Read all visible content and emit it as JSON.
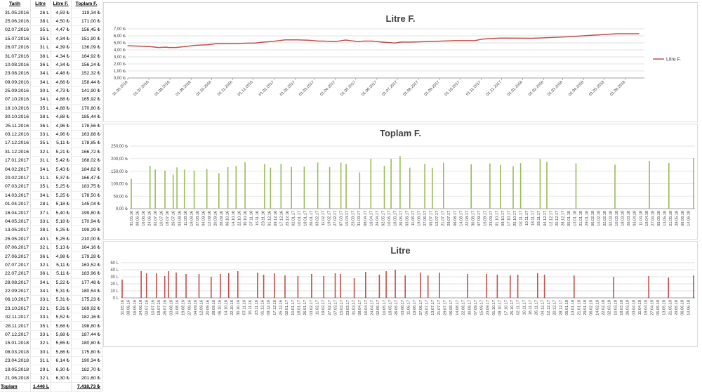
{
  "table": {
    "headers": [
      "Tarih",
      "Litre",
      "Litre F.",
      "Toplam F."
    ],
    "rows": [
      [
        "31.05.2016",
        "26 L",
        "4,59 ₺",
        "119,34 ₺"
      ],
      [
        "25.06.2016",
        "38 L",
        "4,50 ₺",
        "171,00 ₺"
      ],
      [
        "02.07.2016",
        "35 L",
        "4,47 ₺",
        "156,45 ₺"
      ],
      [
        "15.07.2016",
        "35 L",
        "4,34 ₺",
        "151,90 ₺"
      ],
      [
        "26.07.2016",
        "31 L",
        "4,39 ₺",
        "136,09 ₺"
      ],
      [
        "31.07.2016",
        "38 L",
        "4,34 ₺",
        "164,92 ₺"
      ],
      [
        "10.08.2016",
        "36 L",
        "4,34 ₺",
        "156,24 ₺"
      ],
      [
        "23.08.2016",
        "34 L",
        "4,48 ₺",
        "152,32 ₺"
      ],
      [
        "09.09.2016",
        "34 L",
        "4,66 ₺",
        "158,44 ₺"
      ],
      [
        "25.09.2016",
        "30 L",
        "4,73 ₺",
        "141,90 ₺"
      ],
      [
        "07.10.2016",
        "34 L",
        "4,88 ₺",
        "165,92 ₺"
      ],
      [
        "18.10.2016",
        "35 L",
        "4,88 ₺",
        "170,80 ₺"
      ],
      [
        "30.10.2016",
        "38 L",
        "4,88 ₺",
        "185,44 ₺"
      ],
      [
        "25.11.2016",
        "36 L",
        "4,96 ₺",
        "178,56 ₺"
      ],
      [
        "03.12.2016",
        "33 L",
        "4,96 ₺",
        "163,68 ₺"
      ],
      [
        "17.12.2016",
        "35 L",
        "5,11 ₺",
        "178,85 ₺"
      ],
      [
        "31.12.2016",
        "32 L",
        "5,21 ₺",
        "166,72 ₺"
      ],
      [
        "17.01.2017",
        "31 L",
        "5,42 ₺",
        "168,02 ₺"
      ],
      [
        "04.02.2017",
        "34 L",
        "5,43 ₺",
        "184,62 ₺"
      ],
      [
        "20.02.2017",
        "31 L",
        "5,37 ₺",
        "166,47 ₺"
      ],
      [
        "07.03.2017",
        "35 L",
        "5,25 ₺",
        "183,75 ₺"
      ],
      [
        "14.03.2017",
        "34 L",
        "5,25 ₺",
        "178,50 ₺"
      ],
      [
        "01.04.2017",
        "28 L",
        "5,18 ₺",
        "145,04 ₺"
      ],
      [
        "16.04.2017",
        "37 L",
        "5,40 ₺",
        "199,80 ₺"
      ],
      [
        "04.05.2017",
        "33 L",
        "5,18 ₺",
        "170,94 ₺"
      ],
      [
        "13.05.2017",
        "38 L",
        "5,25 ₺",
        "199,29 ₺"
      ],
      [
        "25.05.2017",
        "40 L",
        "5,25 ₺",
        "210,00 ₺"
      ],
      [
        "07.06.2017",
        "32 L",
        "5,13 ₺",
        "164,16 ₺"
      ],
      [
        "27.06.2017",
        "36 L",
        "4,98 ₺",
        "179,28 ₺"
      ],
      [
        "07.07.2017",
        "32 L",
        "5,11 ₺",
        "163,52 ₺"
      ],
      [
        "22.07.2017",
        "36 L",
        "5,11 ₺",
        "183,96 ₺"
      ],
      [
        "28.08.2017",
        "34 L",
        "5,22 ₺",
        "177,48 ₺"
      ],
      [
        "22.09.2017",
        "34 L",
        "5,31 ₺",
        "180,54 ₺"
      ],
      [
        "06.10.2017",
        "33 L",
        "5,31 ₺",
        "175,23 ₺"
      ],
      [
        "23.10.2017",
        "32 L",
        "5,31 ₺",
        "169,92 ₺"
      ],
      [
        "02.11.2017",
        "33 L",
        "5,52 ₺",
        "182,16 ₺"
      ],
      [
        "28.11.2017",
        "35 L",
        "5,68 ₺",
        "198,80 ₺"
      ],
      [
        "07.12.2017",
        "33 L",
        "5,68 ₺",
        "187,44 ₺"
      ],
      [
        "15.01.2018",
        "32 L",
        "5,65 ₺",
        "180,80 ₺"
      ],
      [
        "08.03.2018",
        "30 L",
        "5,86 ₺",
        "175,80 ₺"
      ],
      [
        "23.04.2018",
        "31 L",
        "6,14 ₺",
        "190,34 ₺"
      ],
      [
        "19.05.2018",
        "29 L",
        "6,30 ₺",
        "182,70 ₺"
      ],
      [
        "21.06.2018",
        "32 L",
        "6,30 ₺",
        "201,60 ₺"
      ]
    ],
    "total": {
      "label": "Toplam",
      "litre": "1.446 L",
      "total": "7.418,73 ₺"
    }
  },
  "colors": {
    "line": "#c0504d",
    "green": "#9bbb59",
    "red": "#c0504d",
    "grid": "#d9d9d9",
    "axis": "#8c8c8c"
  },
  "chart_data": [
    {
      "type": "line",
      "title": "Litre F.",
      "legend": "Litre F.",
      "legend_position": "right",
      "x_ticks": [
        "31.05.2016",
        "01.07.2016",
        "01.08.2016",
        "01.09.2016",
        "01.10.2016",
        "01.11.2016",
        "01.12.2016",
        "01.01.2017",
        "01.02.2017",
        "01.03.2017",
        "01.04.2017",
        "01.05.2017",
        "01.06.2017",
        "01.07.2017",
        "01.08.2017",
        "01.09.2017",
        "01.10.2017",
        "01.11.2017",
        "01.12.2017",
        "01.01.2018",
        "01.02.2018",
        "01.03.2018",
        "01.04.2018",
        "01.05.2018",
        "01.06.2018"
      ],
      "y_ticks": [
        "0,00 ₺",
        "1,00 ₺",
        "2,00 ₺",
        "3,00 ₺",
        "4,00 ₺",
        "5,00 ₺",
        "6,00 ₺",
        "7,00 ₺"
      ],
      "ylim": [
        0,
        7
      ],
      "grid": true,
      "x": [
        "31.05.2016",
        "25.06.2016",
        "02.07.2016",
        "15.07.2016",
        "26.07.2016",
        "31.07.2016",
        "10.08.2016",
        "23.08.2016",
        "09.09.2016",
        "25.09.2016",
        "07.10.2016",
        "18.10.2016",
        "30.10.2016",
        "25.11.2016",
        "03.12.2016",
        "17.12.2016",
        "31.12.2016",
        "17.01.2017",
        "04.02.2017",
        "20.02.2017",
        "07.03.2017",
        "14.03.2017",
        "01.04.2017",
        "16.04.2017",
        "04.05.2017",
        "13.05.2017",
        "25.05.2017",
        "07.06.2017",
        "27.06.2017",
        "07.07.2017",
        "22.07.2017",
        "28.08.2017",
        "22.09.2017",
        "06.10.2017",
        "23.10.2017",
        "02.11.2017",
        "28.11.2017",
        "07.12.2017",
        "15.01.2018",
        "08.03.2018",
        "23.04.2018",
        "19.05.2018",
        "21.06.2018"
      ],
      "y": [
        4.59,
        4.5,
        4.47,
        4.34,
        4.39,
        4.34,
        4.34,
        4.48,
        4.66,
        4.73,
        4.88,
        4.88,
        4.88,
        4.96,
        4.96,
        5.11,
        5.21,
        5.42,
        5.43,
        5.37,
        5.25,
        5.25,
        5.18,
        5.4,
        5.18,
        5.25,
        5.25,
        5.13,
        4.98,
        5.11,
        5.11,
        5.22,
        5.31,
        5.31,
        5.31,
        5.52,
        5.68,
        5.68,
        5.65,
        5.86,
        6.14,
        6.3,
        6.3
      ]
    },
    {
      "type": "bar",
      "title": "Toplam F.",
      "y_ticks": [
        "0,00 ₺",
        "50,00 ₺",
        "100,00 ₺",
        "150,00 ₺",
        "200,00 ₺",
        "250,00 ₺"
      ],
      "ylim": [
        0,
        250
      ],
      "grid": true,
      "x": [
        "31.05.2016",
        "25.06.2016",
        "02.07.2016",
        "15.07.2016",
        "26.07.2016",
        "31.07.2016",
        "10.08.2016",
        "23.08.2016",
        "09.09.2016",
        "25.09.2016",
        "07.10.2016",
        "18.10.2016",
        "30.10.2016",
        "25.11.2016",
        "03.12.2016",
        "17.12.2016",
        "31.12.2016",
        "17.01.2017",
        "04.02.2017",
        "20.02.2017",
        "07.03.2017",
        "14.03.2017",
        "01.04.2017",
        "16.04.2017",
        "04.05.2017",
        "13.05.2017",
        "25.05.2017",
        "07.06.2017",
        "27.06.2017",
        "07.07.2017",
        "22.07.2017",
        "28.08.2017",
        "22.09.2017",
        "06.10.2017",
        "23.10.2017",
        "02.11.2017",
        "28.11.2017",
        "07.12.2017",
        "15.01.2018",
        "08.03.2018",
        "23.04.2018",
        "19.05.2018",
        "21.06.2018"
      ],
      "values": [
        119.34,
        171.0,
        156.45,
        151.9,
        136.09,
        164.92,
        156.24,
        152.32,
        158.44,
        141.9,
        165.92,
        170.8,
        185.44,
        178.56,
        163.68,
        178.85,
        166.72,
        168.02,
        184.62,
        166.47,
        183.75,
        178.5,
        145.04,
        199.8,
        170.94,
        199.29,
        210.0,
        164.16,
        179.28,
        163.52,
        183.96,
        177.48,
        180.54,
        175.23,
        169.92,
        182.16,
        198.8,
        187.44,
        180.8,
        175.8,
        190.34,
        182.7,
        201.6
      ],
      "x_ticks": [
        "31.05.16",
        "08.06.16",
        "16.06.16",
        "24.06.16",
        "02.07.16",
        "10.07.16",
        "18.07.16",
        "26.07.16",
        "03.08.16",
        "11.08.16",
        "19.08.16",
        "27.08.16",
        "04.09.16",
        "12.09.16",
        "20.09.16",
        "28.09.16",
        "06.10.16",
        "14.10.16",
        "22.10.16",
        "30.10.16",
        "07.11.16",
        "15.11.16",
        "23.11.16",
        "01.12.16",
        "09.12.16",
        "17.12.16",
        "25.12.16",
        "02.01.17",
        "10.01.17",
        "18.01.17",
        "26.01.17",
        "03.02.17",
        "11.02.17",
        "19.02.17",
        "27.02.17",
        "07.03.17",
        "15.03.17",
        "23.03.17",
        "31.03.17",
        "08.04.17",
        "16.04.17",
        "24.04.17",
        "02.05.17",
        "10.05.17",
        "18.05.17",
        "26.05.17",
        "03.06.17",
        "11.06.17",
        "19.06.17",
        "27.06.17",
        "05.07.17",
        "13.07.17",
        "21.07.17",
        "29.07.17",
        "06.08.17",
        "14.08.17",
        "22.08.17",
        "30.08.17",
        "07.09.17",
        "15.09.17",
        "23.09.17",
        "01.10.17",
        "09.10.17",
        "17.10.17",
        "25.10.17",
        "02.11.17",
        "10.11.17",
        "18.11.17",
        "26.11.17",
        "04.12.17",
        "12.12.17",
        "20.12.17",
        "28.12.17",
        "05.01.18",
        "13.01.18",
        "21.01.18",
        "29.01.18",
        "06.02.18",
        "14.02.18",
        "22.02.18",
        "02.03.18",
        "10.03.18",
        "18.03.18",
        "26.03.18",
        "03.04.18",
        "11.04.18",
        "19.04.18",
        "27.04.18",
        "05.05.18",
        "13.05.18",
        "21.05.18",
        "29.05.18",
        "06.06.18",
        "14.06.18"
      ]
    },
    {
      "type": "bar",
      "title": "Litre",
      "y_ticks": [
        "0 L",
        "10 L",
        "20 L",
        "30 L",
        "40 L",
        "50 L"
      ],
      "ylim": [
        0,
        50
      ],
      "grid": true,
      "x": [
        "31.05.2016",
        "25.06.2016",
        "02.07.2016",
        "15.07.2016",
        "26.07.2016",
        "31.07.2016",
        "10.08.2016",
        "23.08.2016",
        "09.09.2016",
        "25.09.2016",
        "07.10.2016",
        "18.10.2016",
        "30.10.2016",
        "25.11.2016",
        "03.12.2016",
        "17.12.2016",
        "31.12.2016",
        "17.01.2017",
        "04.02.2017",
        "20.02.2017",
        "07.03.2017",
        "14.03.2017",
        "01.04.2017",
        "16.04.2017",
        "04.05.2017",
        "13.05.2017",
        "25.05.2017",
        "07.06.2017",
        "27.06.2017",
        "07.07.2017",
        "22.07.2017",
        "28.08.2017",
        "22.09.2017",
        "06.10.2017",
        "23.10.2017",
        "02.11.2017",
        "28.11.2017",
        "07.12.2017",
        "15.01.2018",
        "08.03.2018",
        "23.04.2018",
        "19.05.2018",
        "21.06.2018"
      ],
      "values": [
        26,
        38,
        35,
        35,
        31,
        38,
        36,
        34,
        34,
        30,
        34,
        35,
        38,
        36,
        33,
        35,
        32,
        31,
        34,
        31,
        35,
        34,
        28,
        37,
        33,
        38,
        40,
        32,
        36,
        32,
        36,
        34,
        34,
        33,
        32,
        33,
        35,
        33,
        32,
        30,
        31,
        29,
        32
      ],
      "x_ticks": [
        "31.05.16",
        "08.06.16",
        "16.06.16",
        "24.06.16",
        "02.07.16",
        "10.07.16",
        "18.07.16",
        "26.07.16",
        "03.08.16",
        "11.08.16",
        "19.08.16",
        "27.08.16",
        "04.09.16",
        "12.09.16",
        "20.09.16",
        "28.09.16",
        "06.10.16",
        "14.10.16",
        "22.10.16",
        "30.10.16",
        "07.11.16",
        "15.11.16",
        "23.11.16",
        "01.12.16",
        "09.12.16",
        "17.12.16",
        "25.12.16",
        "02.01.17",
        "10.01.17",
        "18.01.17",
        "26.01.17",
        "03.02.17",
        "11.02.17",
        "19.02.17",
        "27.02.17",
        "07.03.17",
        "15.03.17",
        "23.03.17",
        "31.03.17",
        "08.04.17",
        "16.04.17",
        "24.04.17",
        "02.05.17",
        "10.05.17",
        "18.05.17",
        "26.05.17",
        "03.06.17",
        "11.06.17",
        "19.06.17",
        "27.06.17",
        "05.07.17",
        "13.07.17",
        "21.07.17",
        "29.07.17",
        "06.08.17",
        "14.08.17",
        "22.08.17",
        "30.08.17",
        "07.09.17",
        "15.09.17",
        "23.09.17",
        "01.10.17",
        "09.10.17",
        "17.10.17",
        "25.10.17",
        "02.11.17",
        "10.11.17",
        "18.11.17",
        "26.11.17",
        "04.12.17",
        "12.12.17",
        "20.12.17",
        "28.12.17",
        "05.01.18",
        "13.01.18",
        "21.01.18",
        "29.01.18",
        "06.02.18",
        "14.02.18",
        "22.02.18",
        "02.03.18",
        "10.03.18",
        "18.03.18",
        "26.03.18",
        "03.04.18",
        "11.04.18",
        "19.04.18",
        "27.04.18",
        "05.05.18",
        "13.05.18",
        "21.05.18",
        "29.05.18",
        "06.06.18",
        "14.06.18"
      ]
    }
  ]
}
